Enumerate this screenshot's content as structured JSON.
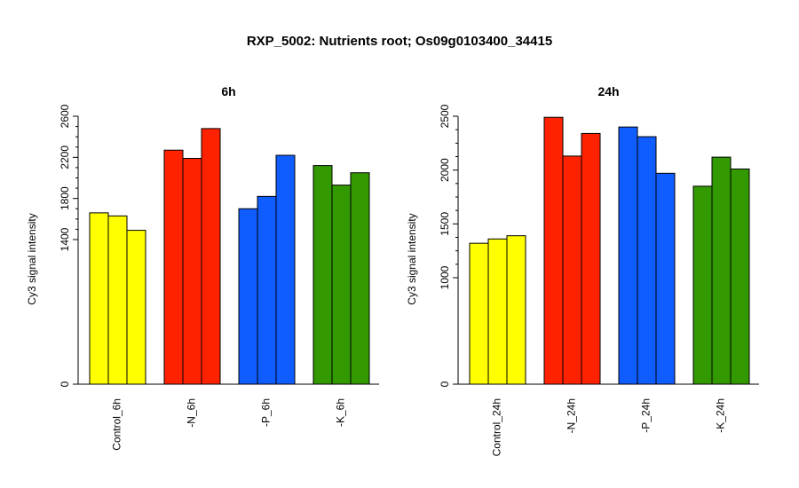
{
  "title": "RXP_5002: Nutrients root; Os09g0103400_34415",
  "chart_data": [
    {
      "type": "bar",
      "title": "6h",
      "ylabel": "Cy3 signal intensity",
      "xlabel": "",
      "y_scale": "broken",
      "y_ticks": [
        0,
        1400,
        1800,
        2200,
        2600
      ],
      "categories": [
        "Control_6h",
        "-N_6h",
        "-P_6h",
        "-K_6h"
      ],
      "colors": [
        "#ffff00",
        "#ff2200",
        "#0f5cff",
        "#339900"
      ],
      "groups": [
        {
          "category": "Control_6h",
          "values": [
            1660,
            1630,
            1490
          ]
        },
        {
          "category": "-N_6h",
          "values": [
            2270,
            2190,
            2480
          ]
        },
        {
          "category": "-P_6h",
          "values": [
            1700,
            1820,
            2220
          ]
        },
        {
          "category": "-K_6h",
          "values": [
            2120,
            1930,
            2050
          ]
        }
      ]
    },
    {
      "type": "bar",
      "title": "24h",
      "ylabel": "Cy3 signal intensity",
      "xlabel": "",
      "y_scale": "broken",
      "y_ticks": [
        0,
        1000,
        1500,
        2000,
        2500
      ],
      "categories": [
        "Control_24h",
        "-N_24h",
        "-P_24h",
        "-K_24h"
      ],
      "colors": [
        "#ffff00",
        "#ff2200",
        "#0f5cff",
        "#339900"
      ],
      "groups": [
        {
          "category": "Control_24h",
          "values": [
            1320,
            1360,
            1390
          ]
        },
        {
          "category": "-N_24h",
          "values": [
            2490,
            2130,
            2340
          ]
        },
        {
          "category": "-P_24h",
          "values": [
            2400,
            2310,
            1970
          ]
        },
        {
          "category": "-K_24h",
          "values": [
            1850,
            2120,
            2010
          ]
        }
      ]
    }
  ]
}
